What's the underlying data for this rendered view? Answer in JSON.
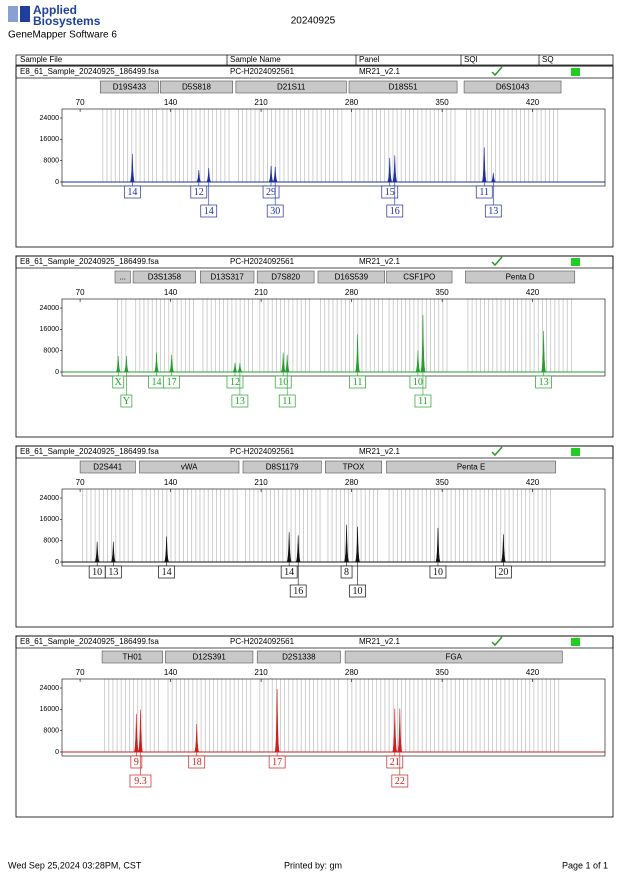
{
  "header": {
    "logo_line1": "Applied",
    "logo_line2": "Biosystems",
    "software": "GeneMapper Software 6",
    "date": "20240925"
  },
  "columns": [
    "Sample File",
    "Sample Name",
    "Panel",
    "SQI",
    "SQ"
  ],
  "panels": [
    {
      "sample_file": "E8_61_Sample_20240925_186499.fsa",
      "sample_name": "PC-H2024092561",
      "panel": "MR21_v2.1",
      "color": "#1f2f9f",
      "xlim": [
        56,
        476
      ],
      "xticks": [
        70,
        140,
        210,
        280,
        350,
        420
      ],
      "ylim": [
        0,
        27375
      ],
      "yticks": [
        0,
        8000,
        16000,
        24000
      ],
      "markers": [
        {
          "name": "D19S433",
          "start": 85.6,
          "end": 130.7
        },
        {
          "name": "D5S818",
          "start": 132,
          "end": 188
        },
        {
          "name": "D21S11",
          "start": 190.5,
          "end": 276
        },
        {
          "name": "D18S51",
          "start": 278,
          "end": 361.6
        },
        {
          "name": "D6S1043",
          "start": 367,
          "end": 442
        }
      ],
      "peaks": [
        {
          "x": 110.4,
          "height": 10500,
          "label": "14"
        },
        {
          "x": 161.8,
          "height": 4500,
          "label": "12"
        },
        {
          "x": 169.5,
          "height": 5200,
          "label": "14"
        },
        {
          "x": 217.7,
          "height": 6000,
          "label": "29"
        },
        {
          "x": 220.9,
          "height": 5600,
          "label": "30"
        },
        {
          "x": 309.5,
          "height": 9000,
          "label": "15"
        },
        {
          "x": 313.4,
          "height": 10000,
          "label": "16"
        },
        {
          "x": 382.6,
          "height": 13000,
          "label": "11"
        },
        {
          "x": 389.6,
          "height": 3500,
          "label": "13"
        }
      ]
    },
    {
      "sample_file": "E8_61_Sample_20240925_186499.fsa",
      "sample_name": "PC-H2024092561",
      "panel": "MR21_v2.1",
      "color": "#22a02a",
      "xlim": [
        56,
        476
      ],
      "xticks": [
        70,
        140,
        210,
        280,
        350,
        420
      ],
      "ylim": [
        0,
        27375
      ],
      "yticks": [
        0,
        8000,
        16000,
        24000
      ],
      "markers": [
        {
          "name": "...",
          "start": 97,
          "end": 108.9
        },
        {
          "name": "D3S1358",
          "start": 111,
          "end": 159.4
        },
        {
          "name": "D13S317",
          "start": 163,
          "end": 204.5
        },
        {
          "name": "D7S820",
          "start": 207,
          "end": 251
        },
        {
          "name": "D16S539",
          "start": 254,
          "end": 305.6
        },
        {
          "name": "CSF1PO",
          "start": 307,
          "end": 357.7
        },
        {
          "name": "Penta D",
          "start": 368,
          "end": 452.6
        }
      ],
      "peaks": [
        {
          "x": 99.5,
          "height": 6000,
          "label": "X"
        },
        {
          "x": 105.8,
          "height": 6000,
          "label": "Y"
        },
        {
          "x": 129.1,
          "height": 7300,
          "label": "14"
        },
        {
          "x": 140.8,
          "height": 6400,
          "label": "17"
        },
        {
          "x": 189.8,
          "height": 3400,
          "label": "12"
        },
        {
          "x": 193.6,
          "height": 3400,
          "label": "13"
        },
        {
          "x": 227.1,
          "height": 7300,
          "label": "10"
        },
        {
          "x": 230.2,
          "height": 6400,
          "label": "11"
        },
        {
          "x": 284.6,
          "height": 14100,
          "label": "11"
        },
        {
          "x": 331.3,
          "height": 8100,
          "label": "10"
        },
        {
          "x": 335.2,
          "height": 21400,
          "label": "11"
        },
        {
          "x": 428.5,
          "height": 15400,
          "label": "13"
        }
      ]
    },
    {
      "sample_file": "E8_61_Sample_20240925_186499.fsa",
      "sample_name": "PC-H2024092561",
      "panel": "MR21_v2.1",
      "color": "#111111",
      "xlim": [
        56,
        476
      ],
      "xticks": [
        70,
        140,
        210,
        280,
        350,
        420
      ],
      "ylim": [
        0,
        27375
      ],
      "yticks": [
        0,
        8000,
        16000,
        24000
      ],
      "markers": [
        {
          "name": "D2S441",
          "start": 70,
          "end": 112.8
        },
        {
          "name": "vWA",
          "start": 115.9,
          "end": 192.9
        },
        {
          "name": "D8S1179",
          "start": 196,
          "end": 256.6
        },
        {
          "name": "TPOX",
          "start": 259.7,
          "end": 303.3
        },
        {
          "name": "Penta E",
          "start": 307,
          "end": 437.8
        }
      ],
      "peaks": [
        {
          "x": 83.2,
          "height": 7600,
          "label": "10"
        },
        {
          "x": 95.7,
          "height": 7600,
          "label": "13"
        },
        {
          "x": 136.9,
          "height": 9600,
          "label": "14"
        },
        {
          "x": 231.7,
          "height": 11200,
          "label": "14"
        },
        {
          "x": 238.7,
          "height": 10000,
          "label": "16"
        },
        {
          "x": 276.1,
          "height": 14000,
          "label": "8"
        },
        {
          "x": 284.6,
          "height": 13200,
          "label": "10"
        },
        {
          "x": 346.8,
          "height": 12800,
          "label": "10"
        },
        {
          "x": 397.4,
          "height": 10400,
          "label": "20"
        }
      ]
    },
    {
      "sample_file": "E8_61_Sample_20240925_186499.fsa",
      "sample_name": "PC-H2024092561",
      "panel": "MR21_v2.1",
      "color": "#cc1f1f",
      "xlim": [
        56,
        476
      ],
      "xticks": [
        70,
        140,
        210,
        280,
        350,
        420
      ],
      "ylim": [
        0,
        27375
      ],
      "yticks": [
        0,
        8000,
        16000,
        24000
      ],
      "markers": [
        {
          "name": "TH01",
          "start": 87,
          "end": 133.8
        },
        {
          "name": "D12S391",
          "start": 136,
          "end": 203.7
        },
        {
          "name": "D2S1338",
          "start": 207,
          "end": 271.4
        },
        {
          "name": "FGA",
          "start": 275,
          "end": 443
        }
      ],
      "peaks": [
        {
          "x": 113.5,
          "height": 14300,
          "label": "9"
        },
        {
          "x": 116.7,
          "height": 15900,
          "label": "9.3"
        },
        {
          "x": 160.2,
          "height": 10500,
          "label": "18"
        },
        {
          "x": 222.4,
          "height": 23600,
          "label": "17"
        },
        {
          "x": 313.4,
          "height": 16300,
          "label": "21"
        },
        {
          "x": 317.3,
          "height": 16300,
          "label": "22"
        }
      ]
    }
  ],
  "footer": {
    "printed": "Wed Sep 25,2024 03:28PM, CST",
    "by": "Printed by: gm",
    "page": "Page 1 of 1"
  }
}
